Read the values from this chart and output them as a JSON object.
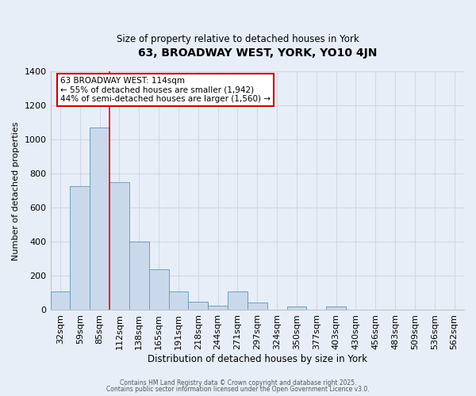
{
  "title": "63, BROADWAY WEST, YORK, YO10 4JN",
  "subtitle": "Size of property relative to detached houses in York",
  "xlabel": "Distribution of detached houses by size in York",
  "ylabel": "Number of detached properties",
  "bar_labels": [
    "32sqm",
    "59sqm",
    "85sqm",
    "112sqm",
    "138sqm",
    "165sqm",
    "191sqm",
    "218sqm",
    "244sqm",
    "271sqm",
    "297sqm",
    "324sqm",
    "350sqm",
    "377sqm",
    "403sqm",
    "430sqm",
    "456sqm",
    "483sqm",
    "509sqm",
    "536sqm",
    "562sqm"
  ],
  "bar_values": [
    110,
    730,
    1070,
    750,
    400,
    240,
    110,
    50,
    25,
    110,
    45,
    0,
    20,
    0,
    20,
    0,
    0,
    0,
    0,
    0,
    0
  ],
  "bar_color": "#c9d9eb",
  "bar_edge_color": "#6b9fc0",
  "ylim": [
    0,
    1400
  ],
  "yticks": [
    0,
    200,
    400,
    600,
    800,
    1000,
    1200,
    1400
  ],
  "redline_x": 2.5,
  "annotation_title": "63 BROADWAY WEST: 114sqm",
  "annotation_line1": "← 55% of detached houses are smaller (1,942)",
  "annotation_line2": "44% of semi-detached houses are larger (1,560) →",
  "annotation_box_color": "#ffffff",
  "annotation_box_edge": "#cc0000",
  "footer1": "Contains HM Land Registry data © Crown copyright and database right 2025.",
  "footer2": "Contains public sector information licensed under the Open Government Licence v3.0.",
  "background_color": "#e8eef8",
  "grid_color": "#d0d8e8"
}
